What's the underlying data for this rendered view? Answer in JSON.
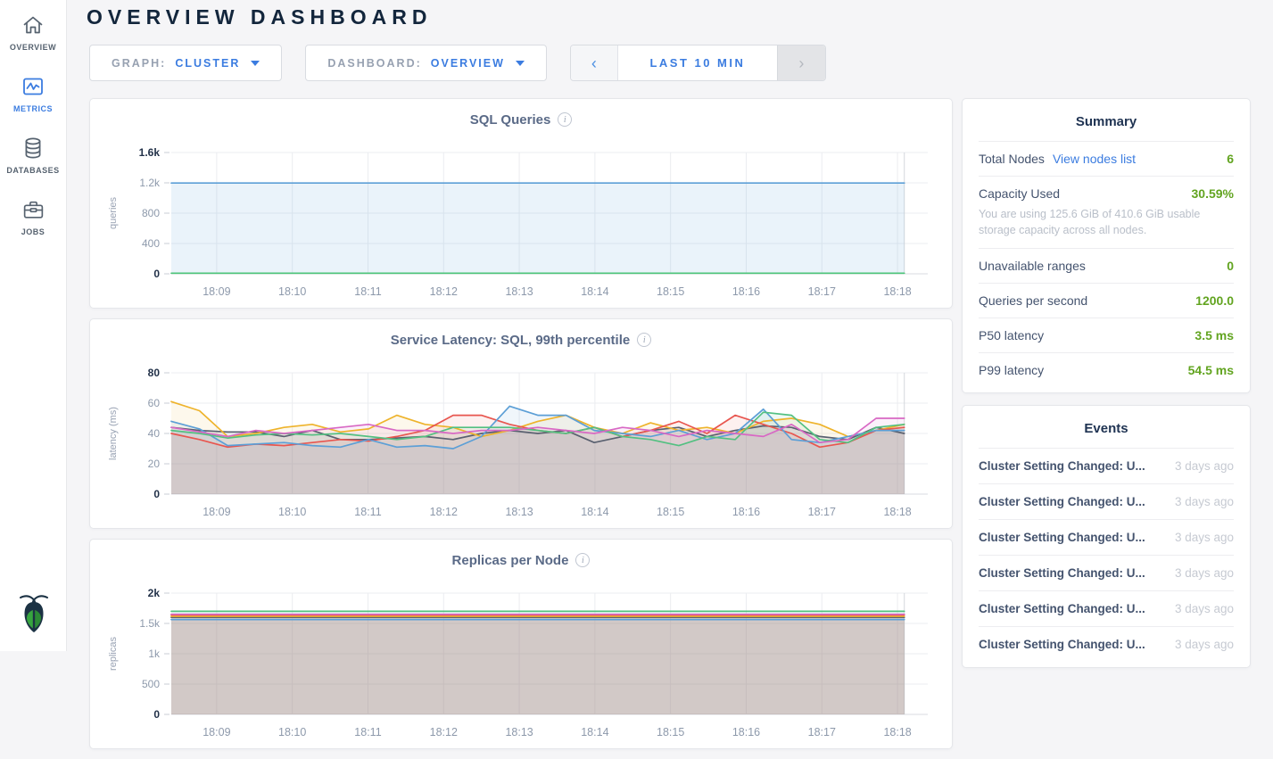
{
  "app": {
    "title": "OVERVIEW DASHBOARD"
  },
  "sidebar": {
    "items": [
      {
        "label": "OVERVIEW"
      },
      {
        "label": "METRICS"
      },
      {
        "label": "DATABASES"
      },
      {
        "label": "JOBS"
      }
    ]
  },
  "controls": {
    "graph_label": "GRAPH:",
    "graph_value": "CLUSTER",
    "dashboard_label": "DASHBOARD:",
    "dashboard_value": "OVERVIEW",
    "time_prev": "‹",
    "time_label": "LAST 10 MIN",
    "time_next": "›"
  },
  "summary": {
    "title": "Summary",
    "total_nodes": {
      "label": "Total Nodes",
      "link": "View nodes list",
      "value": "6"
    },
    "capacity": {
      "label": "Capacity Used",
      "value": "30.59%",
      "note": "You are using 125.6 GiB of 410.6 GiB usable storage capacity across all nodes."
    },
    "unavailable": {
      "label": "Unavailable ranges",
      "value": "0"
    },
    "qps": {
      "label": "Queries per second",
      "value": "1200.0"
    },
    "p50": {
      "label": "P50 latency",
      "value": "3.5 ms"
    },
    "p99": {
      "label": "P99 latency",
      "value": "54.5 ms"
    }
  },
  "events": {
    "title": "Events",
    "items": [
      {
        "title": "Cluster Setting Changed: U...",
        "time": "3 days ago"
      },
      {
        "title": "Cluster Setting Changed: U...",
        "time": "3 days ago"
      },
      {
        "title": "Cluster Setting Changed: U...",
        "time": "3 days ago"
      },
      {
        "title": "Cluster Setting Changed: U...",
        "time": "3 days ago"
      },
      {
        "title": "Cluster Setting Changed: U...",
        "time": "3 days ago"
      },
      {
        "title": "Cluster Setting Changed: U...",
        "time": "3 days ago"
      }
    ]
  },
  "colors": {
    "accent_blue": "#3b7ce0",
    "value_green": "#62a420",
    "grid": "#ebedf0",
    "axis_text": "#8d99ab"
  },
  "chart_data": [
    {
      "type": "area",
      "title": "SQL Queries",
      "ylabel": "queries",
      "ymax": 1600,
      "yticks": [
        "0",
        "400",
        "800",
        "1.2k",
        "1.6k"
      ],
      "xticks": [
        "18:09",
        "18:10",
        "18:11",
        "18:12",
        "18:13",
        "18:14",
        "18:15",
        "18:16",
        "18:17",
        "18:18"
      ],
      "data_span": 0.969,
      "legend_position": "none",
      "grid": true,
      "series": [
        {
          "color": "#5c9fd6",
          "fill_opacity": 0.13,
          "values": [
            1198,
            1198,
            1198,
            1198,
            1198,
            1198,
            1198,
            1198,
            1198,
            1198,
            1198
          ]
        },
        {
          "color": "#4dc57a",
          "fill_opacity": 0,
          "values": [
            8,
            8,
            8,
            8,
            8,
            8,
            8,
            8,
            8,
            8,
            8
          ]
        }
      ]
    },
    {
      "type": "area",
      "title": "Service Latency: SQL, 99th percentile",
      "ylabel": "latency (ms)",
      "ymax": 80,
      "yticks": [
        "0",
        "20",
        "40",
        "60",
        "80"
      ],
      "xticks": [
        "18:09",
        "18:10",
        "18:11",
        "18:12",
        "18:13",
        "18:14",
        "18:15",
        "18:16",
        "18:17",
        "18:18"
      ],
      "data_span": 0.969,
      "legend_position": "none",
      "grid": true,
      "series": [
        {
          "color": "#5a6170",
          "fill_opacity": 0.09,
          "values": [
            44,
            42,
            41,
            41,
            38,
            42,
            36,
            36,
            37,
            38,
            36,
            40,
            42,
            40,
            42,
            34,
            38,
            42,
            44,
            38,
            42,
            45,
            44,
            38,
            36,
            44,
            40
          ]
        },
        {
          "color": "#eeb32b",
          "fill_opacity": 0.09,
          "values": [
            61,
            55,
            38,
            40,
            44,
            46,
            41,
            43,
            52,
            46,
            44,
            38,
            42,
            48,
            52,
            44,
            40,
            47,
            42,
            44,
            40,
            48,
            50,
            46,
            38,
            42,
            46
          ]
        },
        {
          "color": "#e8564f",
          "fill_opacity": 0.09,
          "values": [
            40,
            36,
            31,
            33,
            32,
            34,
            36,
            35,
            38,
            42,
            52,
            52,
            46,
            42,
            40,
            44,
            38,
            42,
            48,
            40,
            52,
            46,
            40,
            31,
            34,
            42,
            44
          ]
        },
        {
          "color": "#5c9fd6",
          "fill_opacity": 0.09,
          "values": [
            48,
            43,
            32,
            33,
            34,
            32,
            31,
            36,
            31,
            32,
            30,
            38,
            58,
            52,
            52,
            42,
            40,
            38,
            42,
            36,
            40,
            56,
            36,
            34,
            38,
            42,
            42
          ]
        },
        {
          "color": "#53c081",
          "fill_opacity": 0.09,
          "values": [
            42,
            40,
            37,
            39,
            40,
            39,
            40,
            38,
            36,
            38,
            44,
            44,
            44,
            42,
            40,
            44,
            38,
            36,
            32,
            38,
            36,
            54,
            52,
            36,
            34,
            44,
            46
          ]
        },
        {
          "color": "#d868c4",
          "fill_opacity": 0.09,
          "values": [
            44,
            41,
            38,
            42,
            40,
            42,
            44,
            46,
            42,
            42,
            40,
            42,
            42,
            44,
            42,
            40,
            44,
            42,
            38,
            42,
            40,
            38,
            46,
            34,
            36,
            50,
            50
          ]
        }
      ]
    },
    {
      "type": "area",
      "title": "Replicas per Node",
      "ylabel": "replicas",
      "ymax": 2000,
      "yticks": [
        "0",
        "500",
        "1k",
        "1.5k",
        "2k"
      ],
      "xticks": [
        "18:09",
        "18:10",
        "18:11",
        "18:12",
        "18:13",
        "18:14",
        "18:15",
        "18:16",
        "18:17",
        "18:18"
      ],
      "data_span": 0.969,
      "legend_position": "none",
      "grid": true,
      "series": [
        {
          "color": "#5c9fd6",
          "fill_opacity": 0.09,
          "values": [
            1565,
            1565,
            1565,
            1565,
            1565,
            1565,
            1565,
            1565,
            1565,
            1565,
            1565
          ]
        },
        {
          "color": "#5a6170",
          "fill_opacity": 0.09,
          "values": [
            1600,
            1600,
            1600,
            1600,
            1600,
            1600,
            1600,
            1600,
            1600,
            1600,
            1600
          ]
        },
        {
          "color": "#eeb32b",
          "fill_opacity": 0.09,
          "values": [
            1618,
            1618,
            1618,
            1618,
            1618,
            1618,
            1618,
            1618,
            1618,
            1618,
            1618
          ]
        },
        {
          "color": "#e8564f",
          "fill_opacity": 0.09,
          "values": [
            1640,
            1640,
            1640,
            1640,
            1640,
            1640,
            1640,
            1640,
            1640,
            1640,
            1640
          ]
        },
        {
          "color": "#d868c4",
          "fill_opacity": 0.09,
          "values": [
            1652,
            1652,
            1652,
            1652,
            1652,
            1652,
            1652,
            1652,
            1652,
            1652,
            1652
          ]
        },
        {
          "color": "#53c081",
          "fill_opacity": 0.09,
          "values": [
            1700,
            1700,
            1700,
            1700,
            1700,
            1700,
            1700,
            1700,
            1700,
            1700,
            1700
          ]
        }
      ]
    }
  ]
}
